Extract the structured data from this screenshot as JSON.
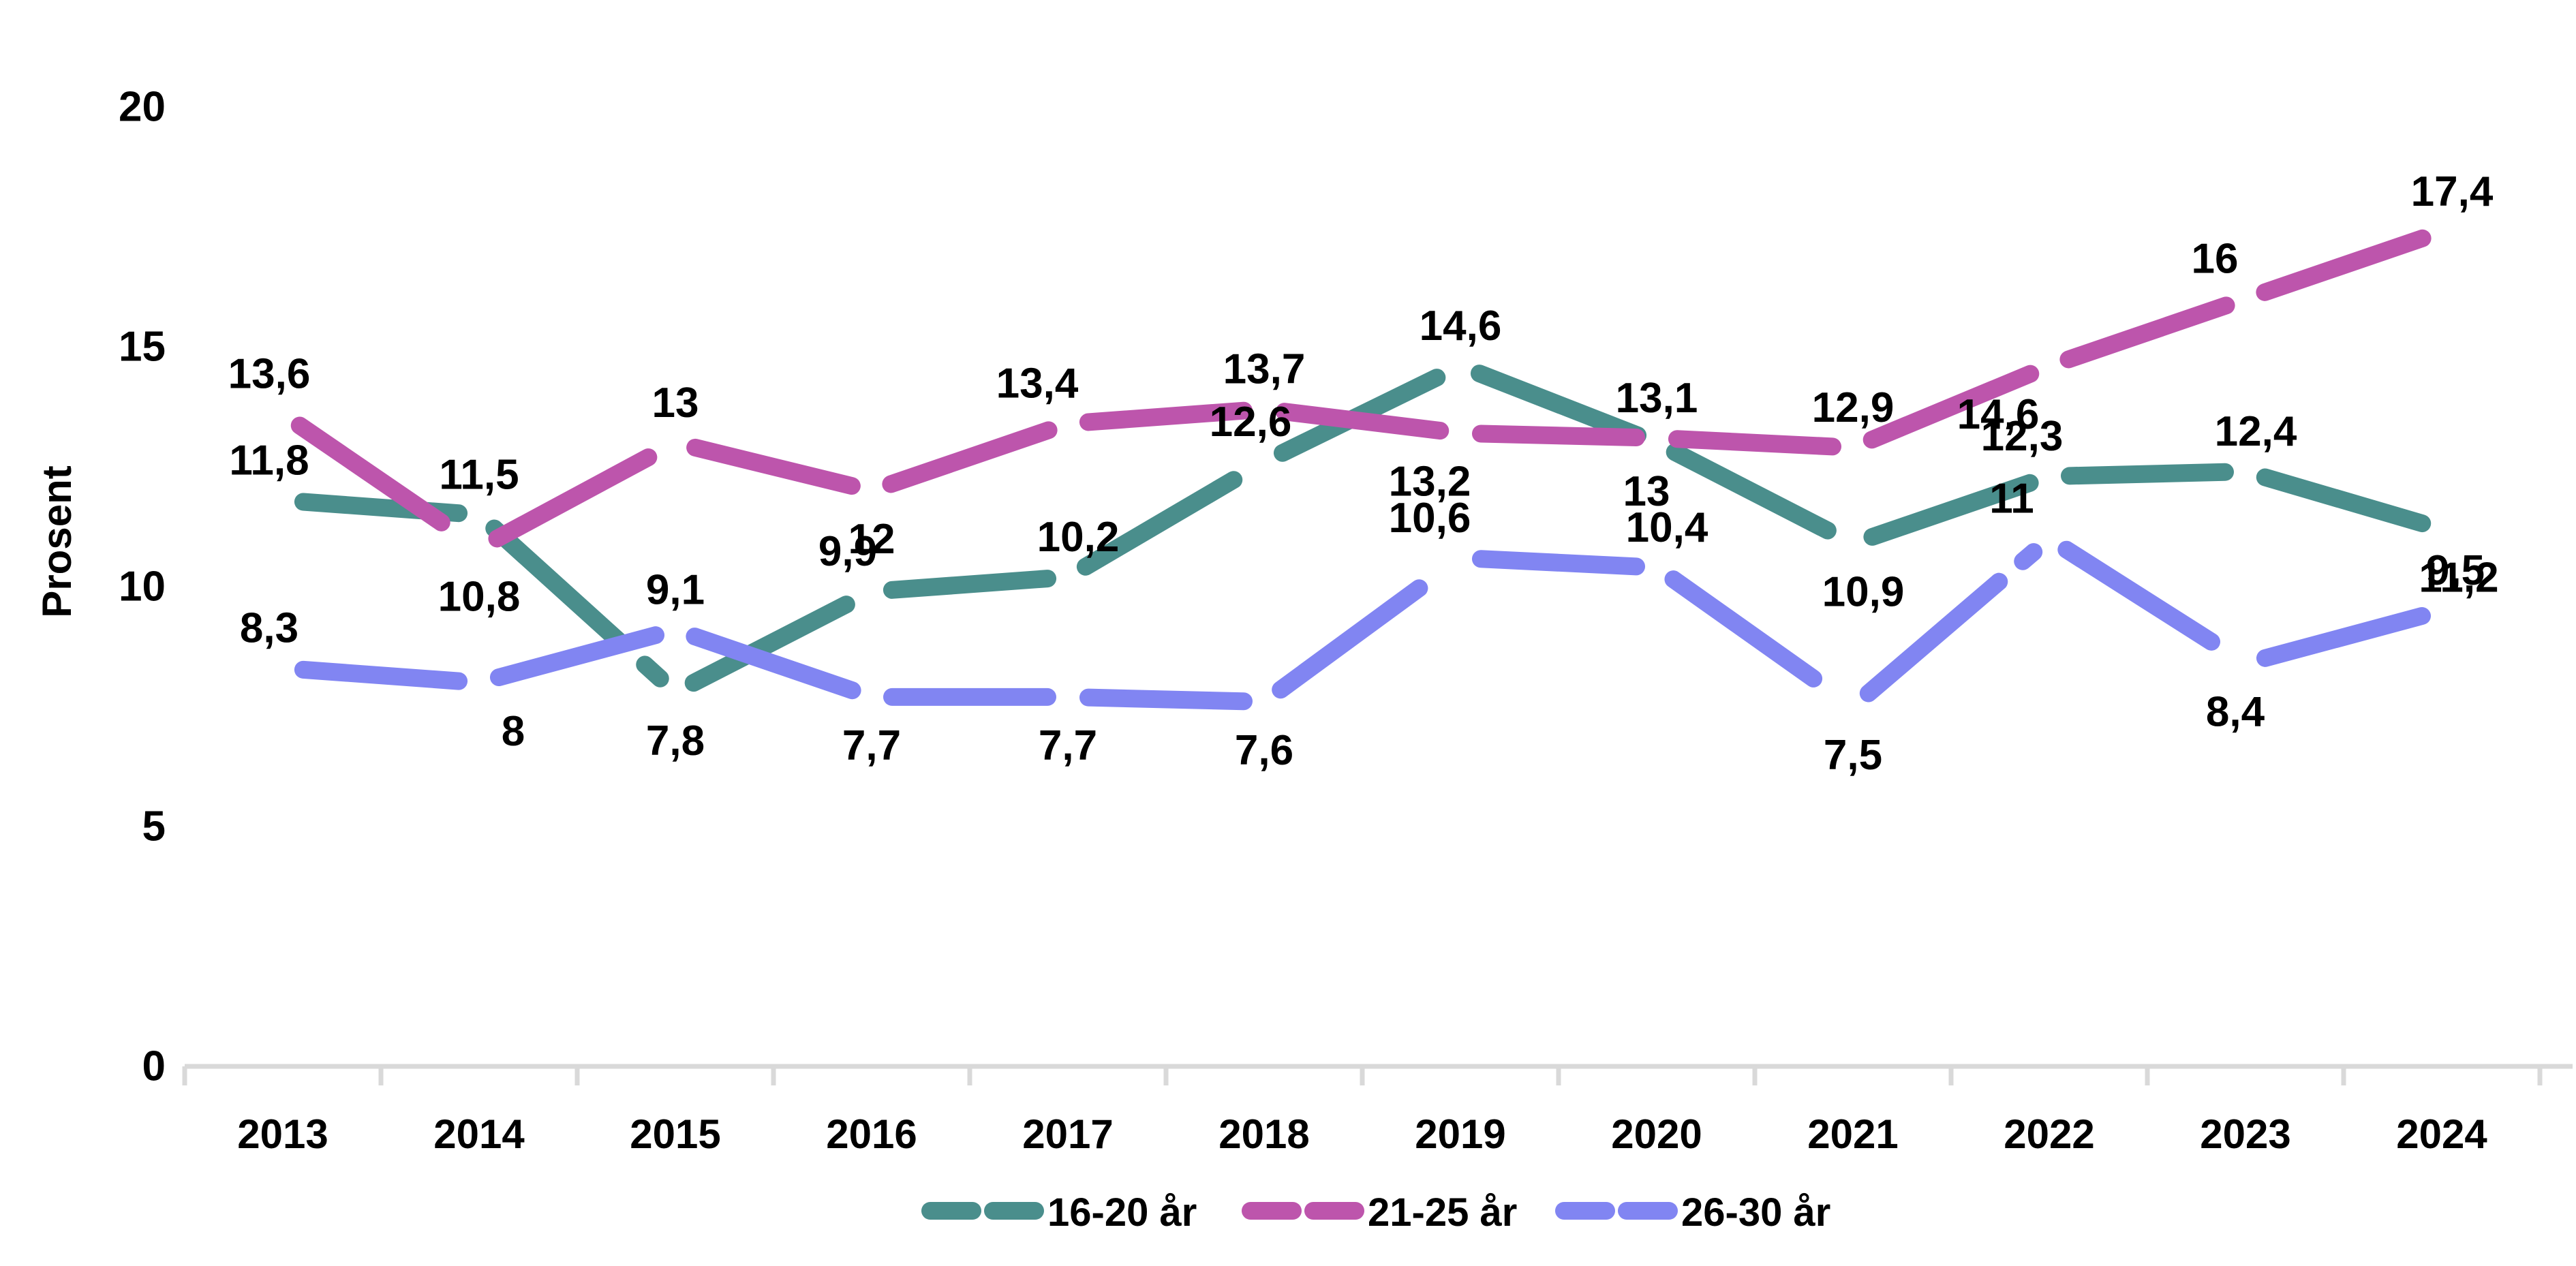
{
  "figure": {
    "background": "#ffffff",
    "text_color": "#000000",
    "axis_line_color": "#d9d9d9"
  },
  "chart_data": {
    "type": "line",
    "title": "",
    "xlabel": "",
    "ylabel": "Prosent",
    "categories": [
      "2013",
      "2014",
      "2015",
      "2016",
      "2017",
      "2018",
      "2019",
      "2020",
      "2021",
      "2022",
      "2023",
      "2024"
    ],
    "ylim": [
      0,
      20
    ],
    "yticks": [
      0,
      5,
      10,
      15,
      20
    ],
    "ytick_labels": [
      "0",
      "5",
      "10",
      "15",
      "20"
    ],
    "grid": false,
    "line_style": "dashed",
    "legend_position": "bottom-center",
    "series": [
      {
        "name": "16-20 år",
        "color": "#4a8e8c",
        "values": [
          11.8,
          11.5,
          7.8,
          9.9,
          10.2,
          12.6,
          14.6,
          13,
          10.9,
          12.3,
          12.4,
          11.2
        ],
        "labels": [
          "11,8",
          "11,5",
          "7,8",
          "9,9",
          "10,2",
          "12,6",
          "14,6",
          "13",
          "10,9",
          "12,3",
          "12,4",
          "11,2"
        ],
        "label_layout": [
          [
            -20,
            "above"
          ],
          [
            0,
            "above"
          ],
          [
            0,
            "below"
          ],
          [
            -35,
            "above"
          ],
          [
            15,
            "above"
          ],
          [
            -20,
            "above"
          ],
          [
            0,
            "above"
          ],
          [
            -15,
            "below"
          ],
          [
            15,
            "below"
          ],
          [
            -40,
            "above"
          ],
          [
            15,
            "above"
          ],
          [
            25,
            "below"
          ]
        ]
      },
      {
        "name": "21-25 år",
        "color": "#bd55ac",
        "values": [
          13.6,
          10.8,
          13,
          12,
          13.4,
          13.7,
          13.2,
          13.1,
          12.9,
          14.6,
          16,
          17.4
        ],
        "labels": [
          "13,6",
          "10,8",
          "13",
          "12",
          "13,4",
          "13,7",
          "13,2",
          "13,1",
          "12,9",
          "14,6",
          "16",
          "17,4"
        ],
        "label_layout": [
          [
            -20,
            "above"
          ],
          [
            0,
            "below"
          ],
          [
            0,
            "above"
          ],
          [
            0,
            "below"
          ],
          [
            -45,
            "above"
          ],
          [
            0,
            "above"
          ],
          [
            -45,
            "below"
          ],
          [
            0,
            "above"
          ],
          [
            0,
            "above"
          ],
          [
            -75,
            "below"
          ],
          [
            -45,
            "above"
          ],
          [
            15,
            "above"
          ]
        ]
      },
      {
        "name": "26-30 år",
        "color": "#8185f2",
        "values": [
          8.3,
          8,
          9.1,
          7.7,
          7.7,
          7.6,
          10.6,
          10.4,
          7.5,
          11,
          8.4,
          9.5
        ],
        "labels": [
          "8,3",
          "8",
          "9,1",
          "7,7",
          "7,7",
          "7,6",
          "10,6",
          "10,4",
          "7,5",
          "11",
          "8,4",
          "9,5"
        ],
        "label_layout": [
          [
            -20,
            "above"
          ],
          [
            50,
            "below"
          ],
          [
            0,
            "above"
          ],
          [
            0,
            "below"
          ],
          [
            0,
            "below"
          ],
          [
            0,
            "below"
          ],
          [
            -45,
            "above"
          ],
          [
            15,
            "above"
          ],
          [
            0,
            "below"
          ],
          [
            -55,
            "above"
          ],
          [
            -15,
            "below"
          ],
          [
            20,
            "above"
          ]
        ]
      }
    ]
  }
}
